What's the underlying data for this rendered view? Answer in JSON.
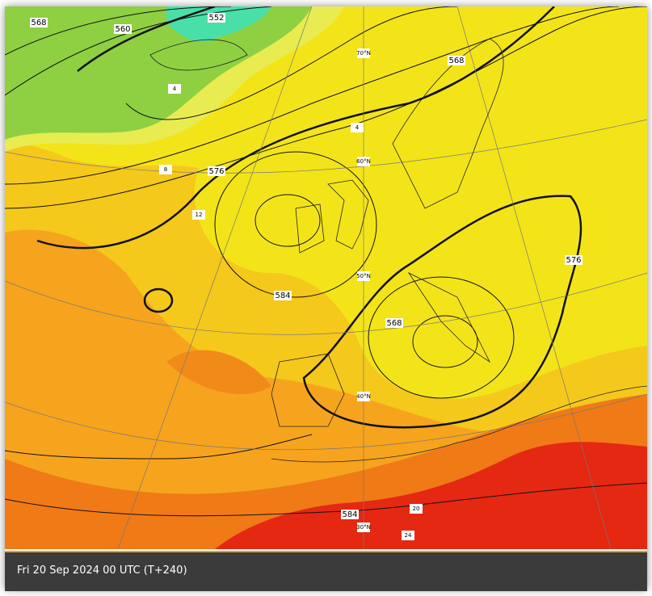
{
  "caption": "Fri 20 Sep 2024 00 UTC (T+240)",
  "contour_labels": [
    "568",
    "560",
    "552",
    "568",
    "576",
    "584",
    "568",
    "576",
    "584"
  ],
  "latitude_labels": [
    "70°N",
    "60°N",
    "50°N",
    "40°N",
    "30°N"
  ],
  "temperature_labels": [
    "4",
    "4",
    "8",
    "12",
    "20",
    "24"
  ]
}
